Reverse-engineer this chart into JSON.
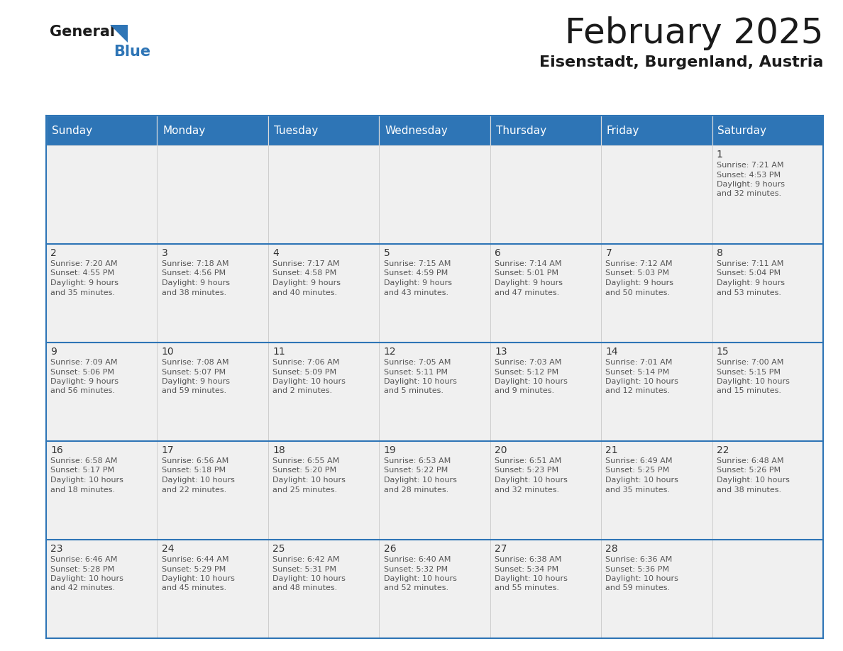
{
  "title": "February 2025",
  "subtitle": "Eisenstadt, Burgenland, Austria",
  "header_color": "#2E75B6",
  "header_text_color": "#FFFFFF",
  "days_of_week": [
    "Sunday",
    "Monday",
    "Tuesday",
    "Wednesday",
    "Thursday",
    "Friday",
    "Saturday"
  ],
  "cell_bg_color": "#F0F0F0",
  "border_color": "#2E75B6",
  "row_border_color": "#2E75B6",
  "date_color": "#333333",
  "info_color": "#555555",
  "calendar_data": [
    [
      null,
      null,
      null,
      null,
      null,
      null,
      {
        "day": "1",
        "sunrise": "7:21 AM",
        "sunset": "4:53 PM",
        "daylight_h": "9 hours",
        "daylight_m": "and 32 minutes."
      }
    ],
    [
      {
        "day": "2",
        "sunrise": "7:20 AM",
        "sunset": "4:55 PM",
        "daylight_h": "9 hours",
        "daylight_m": "and 35 minutes."
      },
      {
        "day": "3",
        "sunrise": "7:18 AM",
        "sunset": "4:56 PM",
        "daylight_h": "9 hours",
        "daylight_m": "and 38 minutes."
      },
      {
        "day": "4",
        "sunrise": "7:17 AM",
        "sunset": "4:58 PM",
        "daylight_h": "9 hours",
        "daylight_m": "and 40 minutes."
      },
      {
        "day": "5",
        "sunrise": "7:15 AM",
        "sunset": "4:59 PM",
        "daylight_h": "9 hours",
        "daylight_m": "and 43 minutes."
      },
      {
        "day": "6",
        "sunrise": "7:14 AM",
        "sunset": "5:01 PM",
        "daylight_h": "9 hours",
        "daylight_m": "and 47 minutes."
      },
      {
        "day": "7",
        "sunrise": "7:12 AM",
        "sunset": "5:03 PM",
        "daylight_h": "9 hours",
        "daylight_m": "and 50 minutes."
      },
      {
        "day": "8",
        "sunrise": "7:11 AM",
        "sunset": "5:04 PM",
        "daylight_h": "9 hours",
        "daylight_m": "and 53 minutes."
      }
    ],
    [
      {
        "day": "9",
        "sunrise": "7:09 AM",
        "sunset": "5:06 PM",
        "daylight_h": "9 hours",
        "daylight_m": "and 56 minutes."
      },
      {
        "day": "10",
        "sunrise": "7:08 AM",
        "sunset": "5:07 PM",
        "daylight_h": "9 hours",
        "daylight_m": "and 59 minutes."
      },
      {
        "day": "11",
        "sunrise": "7:06 AM",
        "sunset": "5:09 PM",
        "daylight_h": "10 hours",
        "daylight_m": "and 2 minutes."
      },
      {
        "day": "12",
        "sunrise": "7:05 AM",
        "sunset": "5:11 PM",
        "daylight_h": "10 hours",
        "daylight_m": "and 5 minutes."
      },
      {
        "day": "13",
        "sunrise": "7:03 AM",
        "sunset": "5:12 PM",
        "daylight_h": "10 hours",
        "daylight_m": "and 9 minutes."
      },
      {
        "day": "14",
        "sunrise": "7:01 AM",
        "sunset": "5:14 PM",
        "daylight_h": "10 hours",
        "daylight_m": "and 12 minutes."
      },
      {
        "day": "15",
        "sunrise": "7:00 AM",
        "sunset": "5:15 PM",
        "daylight_h": "10 hours",
        "daylight_m": "and 15 minutes."
      }
    ],
    [
      {
        "day": "16",
        "sunrise": "6:58 AM",
        "sunset": "5:17 PM",
        "daylight_h": "10 hours",
        "daylight_m": "and 18 minutes."
      },
      {
        "day": "17",
        "sunrise": "6:56 AM",
        "sunset": "5:18 PM",
        "daylight_h": "10 hours",
        "daylight_m": "and 22 minutes."
      },
      {
        "day": "18",
        "sunrise": "6:55 AM",
        "sunset": "5:20 PM",
        "daylight_h": "10 hours",
        "daylight_m": "and 25 minutes."
      },
      {
        "day": "19",
        "sunrise": "6:53 AM",
        "sunset": "5:22 PM",
        "daylight_h": "10 hours",
        "daylight_m": "and 28 minutes."
      },
      {
        "day": "20",
        "sunrise": "6:51 AM",
        "sunset": "5:23 PM",
        "daylight_h": "10 hours",
        "daylight_m": "and 32 minutes."
      },
      {
        "day": "21",
        "sunrise": "6:49 AM",
        "sunset": "5:25 PM",
        "daylight_h": "10 hours",
        "daylight_m": "and 35 minutes."
      },
      {
        "day": "22",
        "sunrise": "6:48 AM",
        "sunset": "5:26 PM",
        "daylight_h": "10 hours",
        "daylight_m": "and 38 minutes."
      }
    ],
    [
      {
        "day": "23",
        "sunrise": "6:46 AM",
        "sunset": "5:28 PM",
        "daylight_h": "10 hours",
        "daylight_m": "and 42 minutes."
      },
      {
        "day": "24",
        "sunrise": "6:44 AM",
        "sunset": "5:29 PM",
        "daylight_h": "10 hours",
        "daylight_m": "and 45 minutes."
      },
      {
        "day": "25",
        "sunrise": "6:42 AM",
        "sunset": "5:31 PM",
        "daylight_h": "10 hours",
        "daylight_m": "and 48 minutes."
      },
      {
        "day": "26",
        "sunrise": "6:40 AM",
        "sunset": "5:32 PM",
        "daylight_h": "10 hours",
        "daylight_m": "and 52 minutes."
      },
      {
        "day": "27",
        "sunrise": "6:38 AM",
        "sunset": "5:34 PM",
        "daylight_h": "10 hours",
        "daylight_m": "and 55 minutes."
      },
      {
        "day": "28",
        "sunrise": "6:36 AM",
        "sunset": "5:36 PM",
        "daylight_h": "10 hours",
        "daylight_m": "and 59 minutes."
      },
      null
    ]
  ],
  "logo_general_color": "#1a1a1a",
  "logo_blue_color": "#2E75B6",
  "logo_triangle_color": "#2E75B6",
  "title_fontsize": 36,
  "subtitle_fontsize": 16,
  "header_fontsize": 11,
  "day_num_fontsize": 10,
  "info_fontsize": 8
}
